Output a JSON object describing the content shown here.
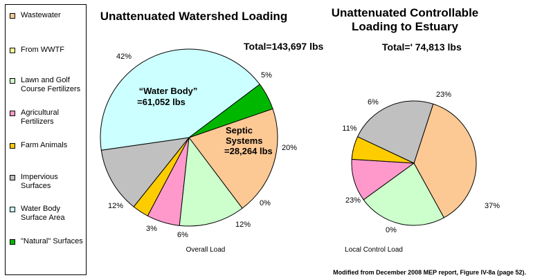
{
  "legend": [
    {
      "label": "Wastewater",
      "color": "#fcc995"
    },
    {
      "label": "From  WWTF",
      "color": "#ffff99"
    },
    {
      "label": "Lawn and Golf Course Fertilizers",
      "color": "#ccffcc"
    },
    {
      "label": "Agricultural Fertilizers",
      "color": "#ff99cc"
    },
    {
      "label": "Farm Animals",
      "color": "#ffcc00"
    },
    {
      "label": "Impervious Surfaces",
      "color": "#c0c0c0"
    },
    {
      "label": "Water Body Surface Area",
      "color": "#ccffff"
    },
    {
      "label": "\"Natural\" Surfaces",
      "color": "#00b700"
    }
  ],
  "footnote": "Modified from December 2008 MEP report, Figure IV-8a (page 52).",
  "chart_data": [
    {
      "type": "pie",
      "title": "Unattenuated Watershed Loading",
      "total_label": "Total=143,697 lbs",
      "caption": "Overall Load",
      "annotations": [
        "“Water Body”",
        "=61,052 lbs",
        "Septic",
        "Systems",
        "=28,264 lbs"
      ],
      "slices": [
        {
          "name": "Wastewater",
          "value": 20,
          "label": "20%"
        },
        {
          "name": "From  WWTF",
          "value": 0,
          "label": "0%"
        },
        {
          "name": "Lawn and Golf Course Fertilizers",
          "value": 12,
          "label": "12%"
        },
        {
          "name": "Agricultural Fertilizers",
          "value": 6,
          "label": "6%"
        },
        {
          "name": "Farm Animals",
          "value": 3,
          "label": "3%"
        },
        {
          "name": "Impervious Surfaces",
          "value": 12,
          "label": "12%"
        },
        {
          "name": "Water Body Surface Area",
          "value": 42,
          "label": "42%"
        },
        {
          "name": "\"Natural\" Surfaces",
          "value": 5,
          "label": "5%"
        }
      ]
    },
    {
      "type": "pie",
      "title": "Unattenuated Controllable Loading to Estuary",
      "total_label": "Total=' 74,813 lbs",
      "caption": "Local Control Load",
      "slices": [
        {
          "name": "Wastewater",
          "value": 37,
          "label": "37%"
        },
        {
          "name": "From  WWTF",
          "value": 0,
          "label": "0%"
        },
        {
          "name": "Lawn and Golf Course Fertilizers",
          "value": 23,
          "label": "23%"
        },
        {
          "name": "Agricultural Fertilizers",
          "value": 11,
          "label": "11%"
        },
        {
          "name": "Farm Animals",
          "value": 6,
          "label": "6%"
        },
        {
          "name": "Impervious Surfaces",
          "value": 23,
          "label": "23%"
        }
      ]
    }
  ]
}
